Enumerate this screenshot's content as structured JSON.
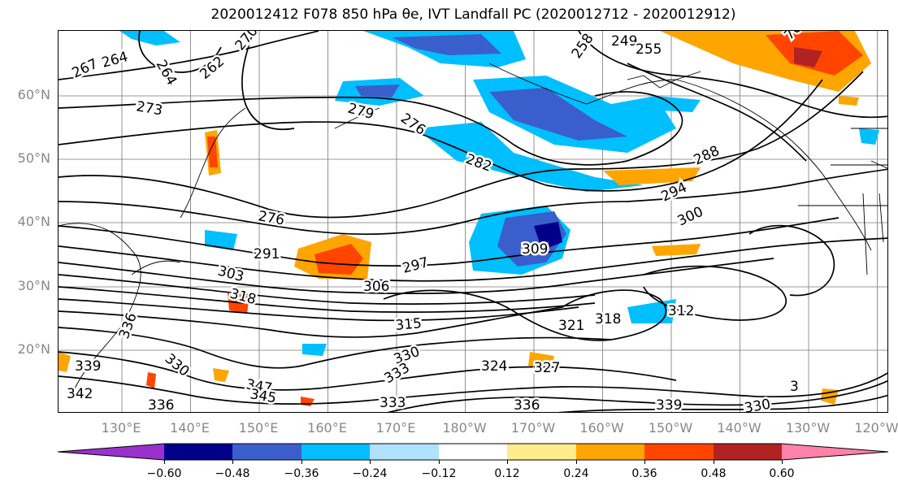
{
  "title": "2020012412 F078 850 hPa θe, IVT Landfall PC (2020012712 - 2020012912)",
  "lat_labels": [
    "60°N",
    "50°N",
    "40°N",
    "30°N",
    "20°N"
  ],
  "lon_labels": [
    "130°E",
    "140°E",
    "150°E",
    "160°E",
    "170°E",
    "180°W",
    "170°W",
    "160°W",
    "150°W",
    "140°W",
    "130°W",
    "120°W"
  ],
  "colorbar": {
    "colors": [
      "#9932cc",
      "#00008b",
      "#3a5fcd",
      "#00bfff",
      "#b0e2ff",
      "#ffffff",
      "#ffec8b",
      "#ffa500",
      "#ff4500",
      "#b22222",
      "#ff82ab"
    ],
    "ticks": [
      "−0.60",
      "−0.48",
      "−0.36",
      "−0.24",
      "−0.12",
      "0.12",
      "0.24",
      "0.36",
      "0.48",
      "0.60"
    ]
  },
  "contour_labels": [
    "267",
    "264",
    "264",
    "270",
    "262",
    "273",
    "279",
    "276",
    "249",
    "255",
    "258",
    "70",
    "282",
    "288",
    "294",
    "276",
    "300",
    "291",
    "309",
    "303",
    "297",
    "318",
    "306",
    "315",
    "321",
    "318",
    "312",
    "336",
    "330",
    "339",
    "330",
    "324",
    "327",
    "347",
    "345",
    "342",
    "333",
    "336",
    "339",
    "330",
    "3",
    "333",
    "336"
  ]
}
